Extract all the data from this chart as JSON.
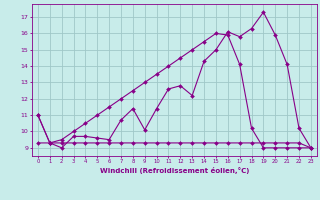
{
  "line1_x": [
    0,
    1,
    2,
    3,
    4,
    5,
    6,
    7,
    8,
    9,
    10,
    11,
    12,
    13,
    14,
    15,
    16,
    17,
    18,
    19,
    20,
    21,
    22,
    23
  ],
  "line1_y": [
    11.0,
    9.3,
    9.0,
    9.7,
    9.7,
    9.6,
    9.5,
    10.7,
    11.4,
    10.1,
    11.4,
    12.6,
    12.8,
    12.2,
    14.3,
    15.0,
    16.1,
    15.8,
    16.3,
    17.3,
    15.9,
    14.1,
    10.2,
    9.0
  ],
  "line2_x": [
    0,
    1,
    2,
    3,
    4,
    5,
    6,
    7,
    8,
    9,
    10,
    11,
    12,
    13,
    14,
    15,
    16,
    17,
    18,
    19,
    20,
    21,
    22,
    23
  ],
  "line2_y": [
    11.0,
    9.3,
    9.5,
    10.0,
    10.5,
    11.0,
    11.5,
    12.0,
    12.5,
    13.0,
    13.5,
    14.0,
    14.5,
    15.0,
    15.5,
    16.0,
    15.9,
    14.1,
    10.2,
    9.0,
    9.0,
    9.0,
    9.0,
    9.0
  ],
  "line3_x": [
    0,
    1,
    2,
    3,
    4,
    5,
    6,
    7,
    8,
    9,
    10,
    11,
    12,
    13,
    14,
    15,
    16,
    17,
    18,
    19,
    20,
    21,
    22,
    23
  ],
  "line3_y": [
    9.3,
    9.3,
    9.3,
    9.3,
    9.3,
    9.3,
    9.3,
    9.3,
    9.3,
    9.3,
    9.3,
    9.3,
    9.3,
    9.3,
    9.3,
    9.3,
    9.3,
    9.3,
    9.3,
    9.3,
    9.3,
    9.3,
    9.3,
    9.0
  ],
  "line_color": "#880088",
  "background_color": "#c8ecea",
  "grid_color": "#a0c8c8",
  "xlabel": "Windchill (Refroidissement éolien,°C)",
  "ylim": [
    8.5,
    17.8
  ],
  "xlim": [
    -0.5,
    23.5
  ],
  "yticks": [
    9,
    10,
    11,
    12,
    13,
    14,
    15,
    16,
    17
  ],
  "xticks": [
    0,
    1,
    2,
    3,
    4,
    5,
    6,
    7,
    8,
    9,
    10,
    11,
    12,
    13,
    14,
    15,
    16,
    17,
    18,
    19,
    20,
    21,
    22,
    23
  ]
}
